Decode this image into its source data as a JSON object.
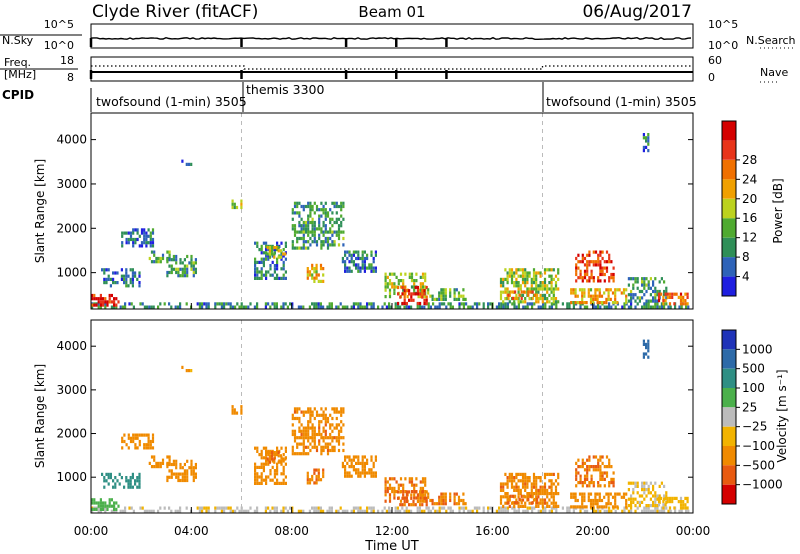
{
  "header": {
    "station": "Clyde River (fitACF)",
    "beam": "Beam 01",
    "date": "06/Aug/2017"
  },
  "nsky_panel": {
    "left_label": "N.Sky",
    "right_label": "N.Search",
    "left_ticks": [
      "10^5",
      "10^0"
    ],
    "right_ticks": [
      "10^5",
      "10^0"
    ],
    "dip_hours": [
      0.0,
      6.0,
      10.17,
      12.17,
      14.17
    ]
  },
  "freq_panel": {
    "left_label_top": "Freq.",
    "left_label_bottom": "[MHz]",
    "right_label": "Nave",
    "left_ticks": [
      "18",
      "8"
    ],
    "right_ticks": [
      "60",
      "0"
    ]
  },
  "cpid_panel": {
    "label": "CPID",
    "segments": [
      {
        "label": "twofsound (1-min) 3505",
        "start_hour": 0.0
      },
      {
        "label": "themis 3300",
        "start_hour": 6.1
      },
      {
        "label": "twofsound (1-min) 3505",
        "start_hour": 18.0
      }
    ]
  },
  "time_axis": {
    "label": "Time UT",
    "ticks": [
      "00:00",
      "04:00",
      "08:00",
      "12:00",
      "16:00",
      "20:00",
      "00:00"
    ],
    "tick_hours": [
      0,
      4,
      8,
      12,
      16,
      20,
      24
    ],
    "mode_change_hours": [
      6.0,
      18.0
    ]
  },
  "power_panel": {
    "ylabel": "Slant Range [km]",
    "yticks": [
      "1000",
      "2000",
      "3000",
      "4000"
    ],
    "ytick_values": [
      1000,
      2000,
      3000,
      4000
    ],
    "colorbar_label": "Power [dB]",
    "colorbar_ticks": [
      "4",
      "8",
      "12",
      "16",
      "20",
      "24",
      "28"
    ],
    "colorbar_colors": [
      "#1f1fe0",
      "#2e63b8",
      "#2f8f58",
      "#4faa30",
      "#bcd21e",
      "#f0a000",
      "#f07000",
      "#e8341a",
      "#d40000"
    ]
  },
  "velocity_panel": {
    "ylabel": "Slant Range [km]",
    "yticks": [
      "1000",
      "2000",
      "3000",
      "4000"
    ],
    "ytick_values": [
      1000,
      2000,
      3000,
      4000
    ],
    "colorbar_label": "Velocity [m s⁻¹]",
    "colorbar_ticks": [
      "1000",
      "500",
      "100",
      "25",
      "−25",
      "−100",
      "−500",
      "−1000"
    ],
    "colorbar_colors": [
      "#1f33b8",
      "#2d6aa8",
      "#2f8f84",
      "#4bb04b",
      "#bcbcbc",
      "#f2b300",
      "#f08a00",
      "#e85a10",
      "#d40000"
    ]
  },
  "chart_data": {
    "type": "heatmap",
    "title": "Clyde River (fitACF)  Beam 01  06/Aug/2017",
    "xlabel": "Time UT",
    "ylabel": "Slant Range [km]",
    "xlim_hours": [
      0,
      24
    ],
    "ylim_km": [
      180,
      4600
    ],
    "grid": false,
    "power_scale_db": [
      0,
      30
    ],
    "velocity_scale_ms": [
      -1000,
      1000
    ],
    "echo_regions": [
      {
        "t0": 0.0,
        "t1": 24.0,
        "r0": 200,
        "r1": 330,
        "power": 8,
        "velocity": -10
      },
      {
        "t0": 0.0,
        "t1": 1.1,
        "r0": 250,
        "r1": 520,
        "power": 27,
        "velocity": 60
      },
      {
        "t0": 0.4,
        "t1": 2.0,
        "r0": 700,
        "r1": 1100,
        "power": 6,
        "velocity": 250
      },
      {
        "t0": 1.2,
        "t1": 2.5,
        "r0": 1600,
        "r1": 2000,
        "power": 6,
        "velocity": -200
      },
      {
        "t0": 2.3,
        "t1": 3.2,
        "r0": 1200,
        "r1": 1500,
        "power": 10,
        "velocity": -250
      },
      {
        "t0": 3.0,
        "t1": 4.2,
        "r0": 900,
        "r1": 1400,
        "power": 9,
        "velocity": -150
      },
      {
        "t0": 3.6,
        "t1": 4.0,
        "r0": 3400,
        "r1": 3550,
        "power": 5,
        "velocity": -120
      },
      {
        "t0": 5.6,
        "t1": 6.0,
        "r0": 2450,
        "r1": 2650,
        "power": 13,
        "velocity": -180
      },
      {
        "t0": 6.5,
        "t1": 7.8,
        "r0": 800,
        "r1": 1700,
        "power": 7,
        "velocity": -250
      },
      {
        "t0": 7.0,
        "t1": 7.8,
        "r0": 1300,
        "r1": 1600,
        "power": 15,
        "velocity": -450
      },
      {
        "t0": 8.0,
        "t1": 10.1,
        "r0": 1500,
        "r1": 2600,
        "power": 9,
        "velocity": -400
      },
      {
        "t0": 8.6,
        "t1": 9.3,
        "r0": 800,
        "r1": 1200,
        "power": 18,
        "velocity": -450
      },
      {
        "t0": 10.0,
        "t1": 11.4,
        "r0": 1000,
        "r1": 1500,
        "power": 7,
        "velocity": -300
      },
      {
        "t0": 11.7,
        "t1": 13.4,
        "r0": 400,
        "r1": 1000,
        "power": 14,
        "velocity": -450
      },
      {
        "t0": 12.2,
        "t1": 13.4,
        "r0": 300,
        "r1": 700,
        "power": 26,
        "velocity": -600
      },
      {
        "t0": 13.4,
        "t1": 15.0,
        "r0": 350,
        "r1": 650,
        "power": 11,
        "velocity": -450
      },
      {
        "t0": 16.3,
        "t1": 18.7,
        "r0": 300,
        "r1": 1100,
        "power": 14,
        "velocity": -400
      },
      {
        "t0": 16.6,
        "t1": 17.8,
        "r0": 350,
        "r1": 600,
        "power": 21,
        "velocity": -550
      },
      {
        "t0": 19.3,
        "t1": 20.9,
        "r0": 800,
        "r1": 1500,
        "power": 25,
        "velocity": -450
      },
      {
        "t0": 19.1,
        "t1": 21.4,
        "r0": 300,
        "r1": 650,
        "power": 18,
        "velocity": -380
      },
      {
        "t0": 21.4,
        "t1": 23.0,
        "r0": 300,
        "r1": 900,
        "power": 9,
        "velocity": -30
      },
      {
        "t0": 22.6,
        "t1": 23.8,
        "r0": 250,
        "r1": 550,
        "power": 22,
        "velocity": -50
      },
      {
        "t0": 22.0,
        "t1": 22.3,
        "r0": 3700,
        "r1": 4150,
        "power": 6,
        "velocity": 700
      }
    ]
  }
}
